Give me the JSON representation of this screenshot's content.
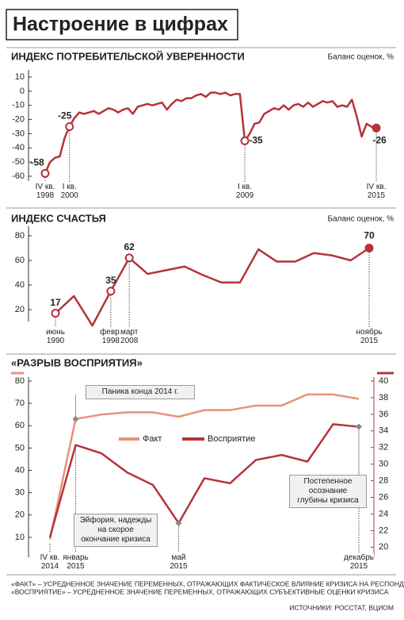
{
  "title": "Настроение в цифрах",
  "chart_data": [
    {
      "type": "line",
      "title": "ИНДЕКС ПОТРЕБИТЕЛЬСКОЙ УВЕРЕННОСТИ",
      "y_label": "Баланс оценок, %",
      "color": "#b5343a",
      "categories": [
        "IV кв.\n1998",
        null,
        null,
        null,
        null,
        "I кв.\n2000",
        null,
        null,
        null,
        null,
        null,
        null,
        null,
        null,
        null,
        null,
        null,
        null,
        null,
        null,
        null,
        null,
        null,
        null,
        null,
        null,
        null,
        null,
        null,
        null,
        null,
        null,
        null,
        null,
        null,
        null,
        null,
        null,
        null,
        null,
        null,
        "I кв.\n2009",
        null,
        null,
        null,
        null,
        null,
        null,
        null,
        null,
        null,
        null,
        null,
        null,
        null,
        null,
        null,
        null,
        null,
        null,
        null,
        null,
        null,
        null,
        null,
        null,
        null,
        null,
        "IV кв.\n2015"
      ],
      "values": [
        -58,
        -50,
        -47,
        -46,
        -33,
        -25,
        -19,
        -15,
        -16,
        -15,
        -14,
        -16,
        -14,
        -12,
        -13,
        -15,
        -13,
        -12,
        -16,
        -11,
        -10,
        -9,
        -10,
        -9,
        -8,
        -13,
        -9,
        -6,
        -7,
        -5,
        -5,
        -3,
        -2,
        -4,
        -1,
        -1,
        -2,
        -1,
        -3,
        -2,
        -2,
        -35,
        -30,
        -23,
        -22,
        -16,
        -14,
        -12,
        -13,
        -10,
        -13,
        -10,
        -9,
        -11,
        -8,
        -11,
        -9,
        -7,
        -8,
        -7,
        -11,
        -10,
        -11,
        -6,
        -18,
        -32,
        -23,
        -25,
        -26
      ],
      "ylim": [
        -60,
        10
      ],
      "yticks": [
        10,
        0,
        -10,
        -20,
        -30,
        -40,
        -50,
        -60
      ],
      "grid": false
    },
    {
      "type": "line",
      "title": "ИНДЕКС СЧАСТЬЯ",
      "y_label": "Баланс оценок, %",
      "color": "#b5343a",
      "categories": [
        "июнь\n1990",
        null,
        null,
        "февр.\n1998",
        "март\n2008",
        null,
        null,
        null,
        null,
        null,
        null,
        null,
        null,
        null,
        null,
        null,
        null,
        "ноябрь\n2015"
      ],
      "values": [
        17,
        31,
        7,
        35,
        62,
        49,
        52,
        55,
        48,
        42,
        42,
        69,
        59,
        59,
        66,
        64,
        60,
        70
      ],
      "ylim": [
        10,
        86
      ],
      "yticks": [
        20,
        40,
        60,
        80
      ],
      "grid": false
    },
    {
      "type": "line",
      "title": "«РАЗРЫВ ВОСПРИЯТИЯ»",
      "categories": [
        "IV кв.\n2014",
        "январь\n2015",
        null,
        null,
        null,
        "май\n2015",
        null,
        null,
        null,
        null,
        null,
        null,
        "декабрь\n2015"
      ],
      "series": [
        {
          "name": "Факт",
          "color": "#e8927a",
          "values": [
            9,
            63,
            65,
            66,
            66,
            64,
            67,
            67,
            69,
            69,
            74,
            74,
            72
          ]
        },
        {
          "name": "Восприятие",
          "color": "#b5343a",
          "axis": "y2",
          "values": [
            21.2,
            32.3,
            31.3,
            29,
            27.5,
            22.9,
            28.3,
            27.7,
            30.5,
            31.1,
            30.3,
            34.8,
            34.5
          ]
        }
      ],
      "ylim": [
        0,
        80
      ],
      "yticks": [
        10,
        20,
        30,
        40,
        50,
        60,
        70,
        80
      ],
      "y2lim": [
        18.5,
        40
      ],
      "y2ticks": [
        20,
        22,
        24,
        26,
        28,
        30,
        32,
        34,
        36,
        38,
        40
      ],
      "grid": false,
      "annotations": [
        "Паника конца 2014 г.",
        "Эйфория, надежды на скорое окончание кризиса",
        "Постепенное осознание глубины кризиса"
      ]
    }
  ],
  "notes": [
    "«ФАКТ» – УСРЕДНЕННОЕ ЗНАЧЕНИЕ ПЕРЕМЕННЫХ, ОТРАЖАЮЩИХ ФАКТИЧЕСКОЕ ВЛИЯНИЕ КРИЗИСА НА РЕСПОНДЕНТОВ",
    "«ВОСПРИЯТИЕ» – УСРЕДНЕННОЕ ЗНАЧЕНИЕ ПЕРЕМЕННЫХ, ОТРАЖАЮЩИХ СУБЪЕКТИВНЫЕ ОЦЕНКИ КРИЗИСА"
  ],
  "source": "ИСТОЧНИКИ: РОССТАТ, ВЦИОМ"
}
